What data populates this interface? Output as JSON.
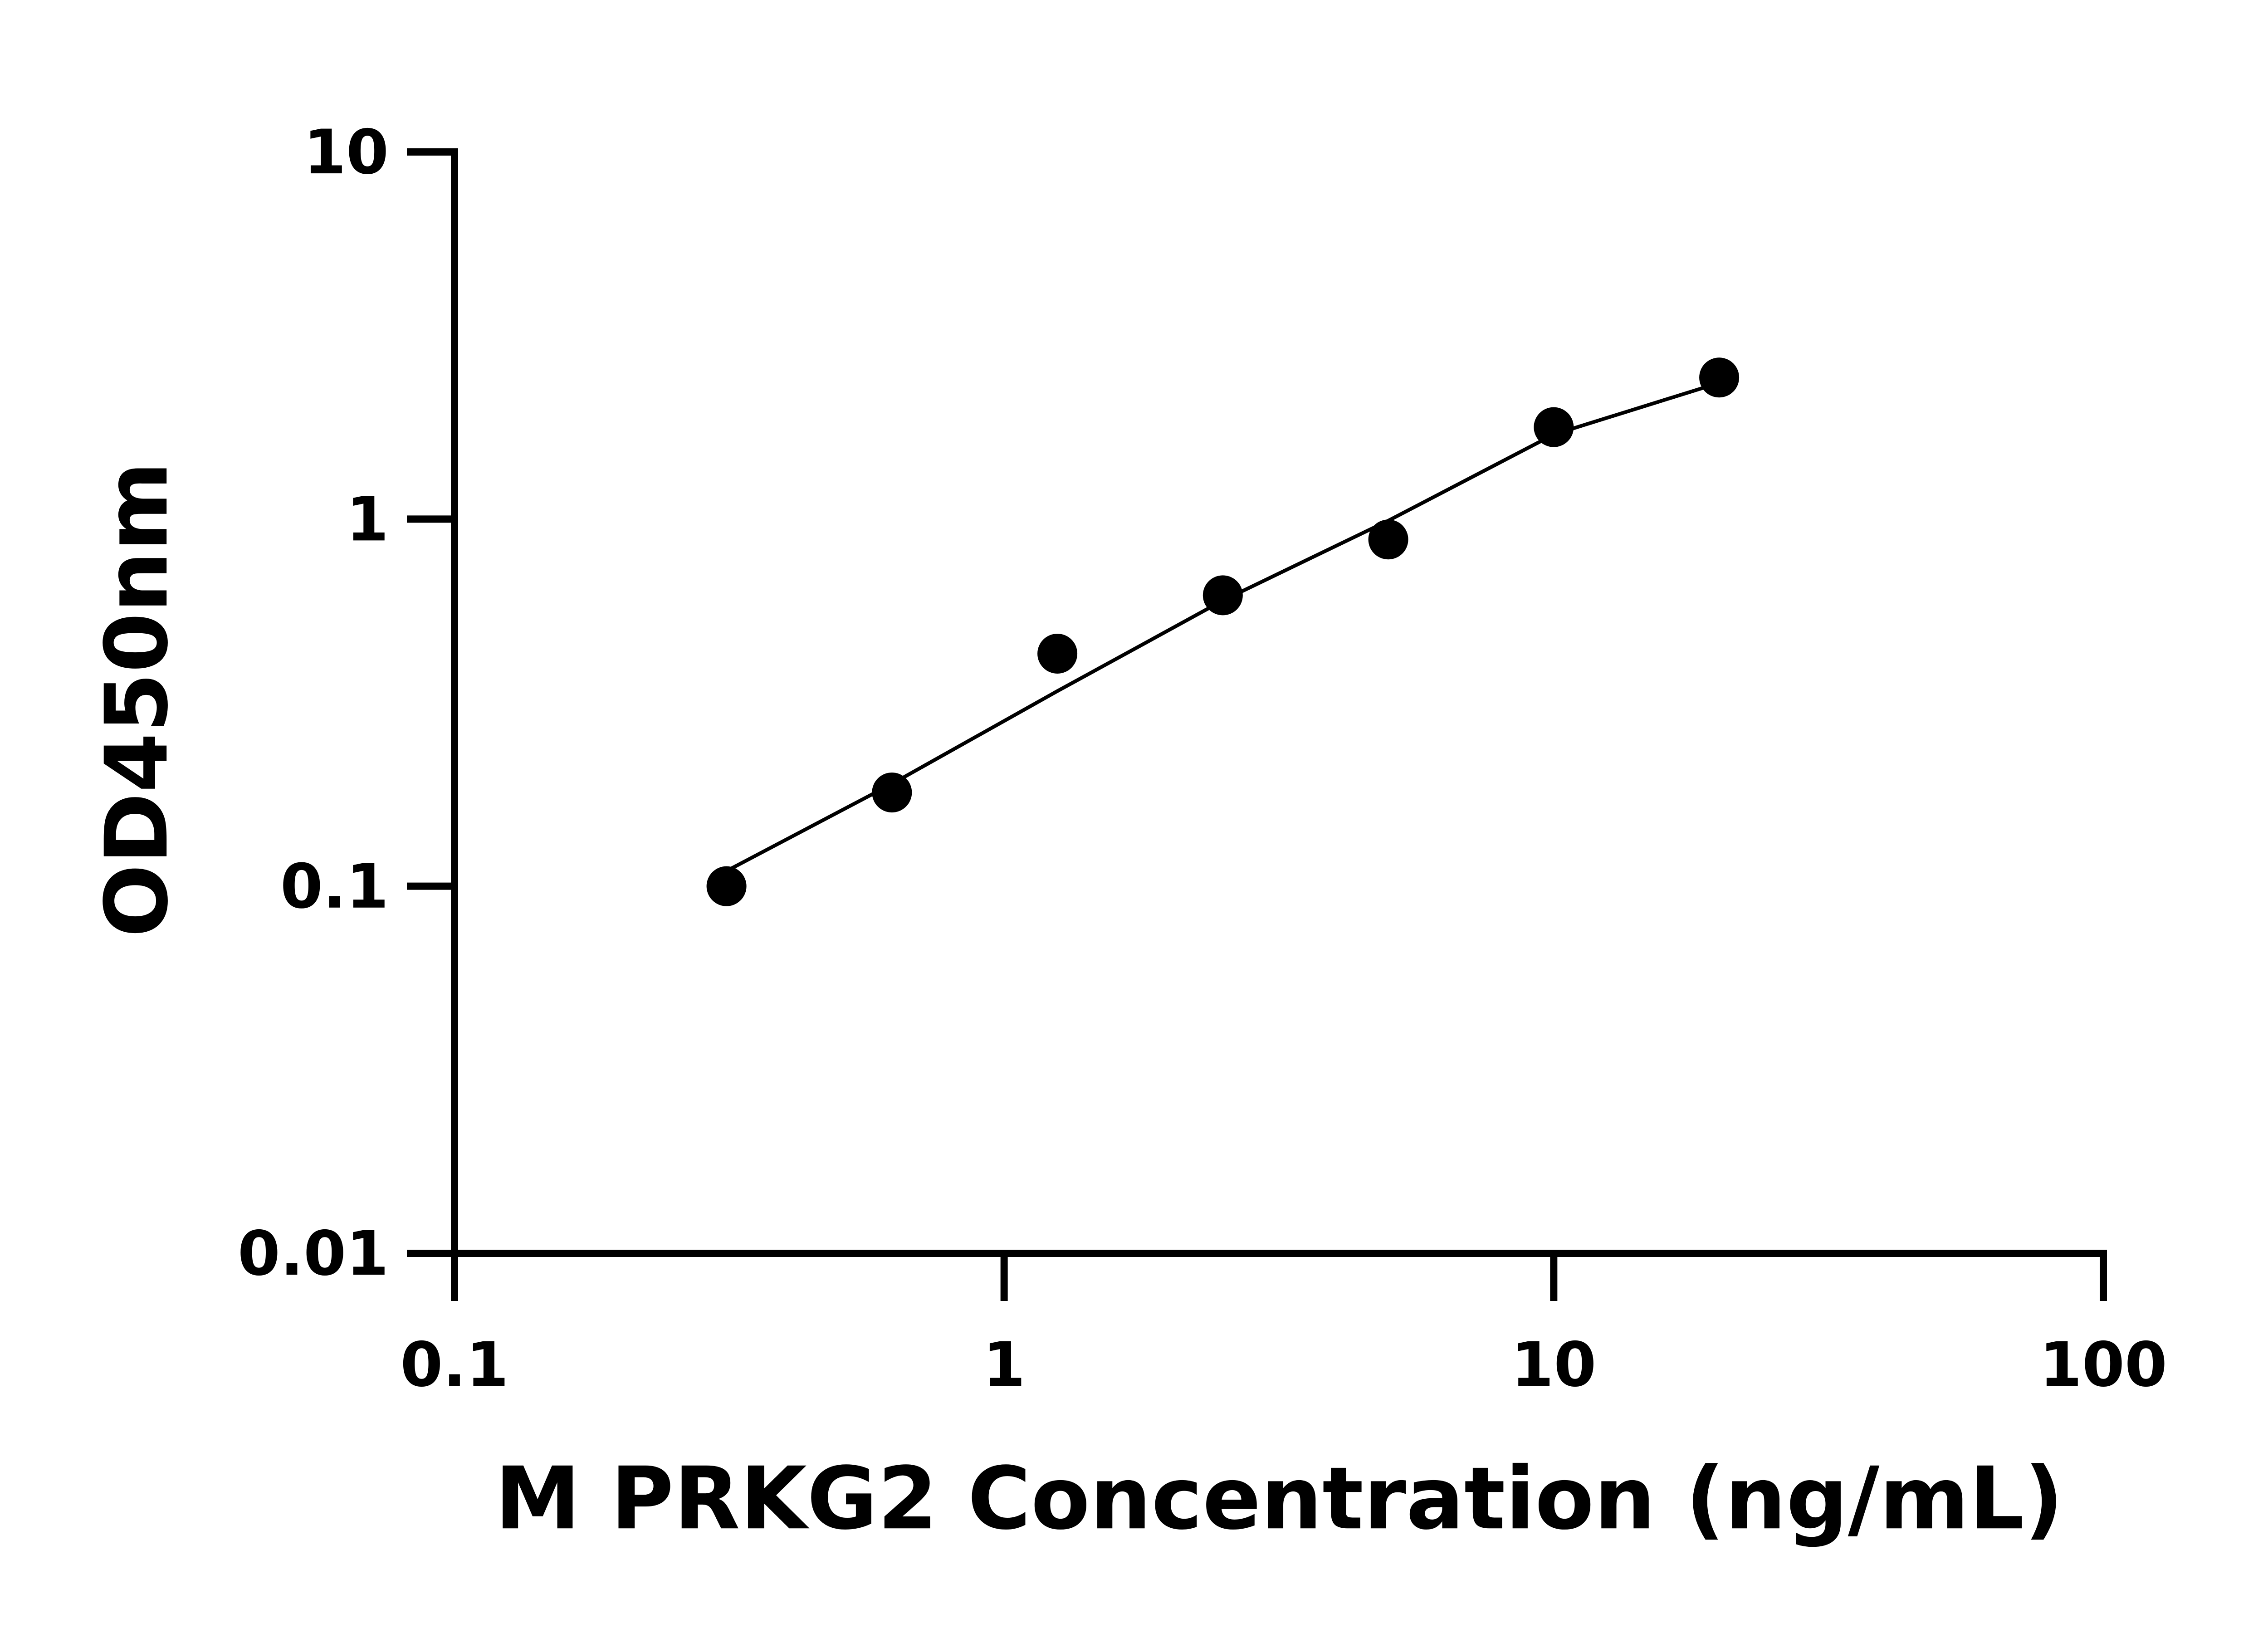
{
  "chart_data": {
    "type": "scatter",
    "x_label": "M PRKG2 Concentration (ng/mL)",
    "y_label": "OD450nm",
    "x": [
      0.3125,
      0.625,
      1.25,
      2.5,
      5,
      10,
      20
    ],
    "values": [
      0.1,
      0.18,
      0.43,
      0.62,
      0.88,
      1.78,
      2.43
    ],
    "color": "#000000",
    "fit": {
      "x": [
        0.3125,
        0.625,
        1.25,
        2.5,
        5,
        10,
        20
      ],
      "values": [
        0.11,
        0.19,
        0.34,
        0.6,
        0.99,
        1.7,
        2.35
      ]
    },
    "log_x": true,
    "log_y": true,
    "xlim": [
      0.1,
      100
    ],
    "xticks": [
      0.1,
      1,
      10,
      100
    ],
    "ylim": [
      0.01,
      10
    ],
    "yticks": [
      0.01,
      0.1,
      1,
      10
    ]
  }
}
